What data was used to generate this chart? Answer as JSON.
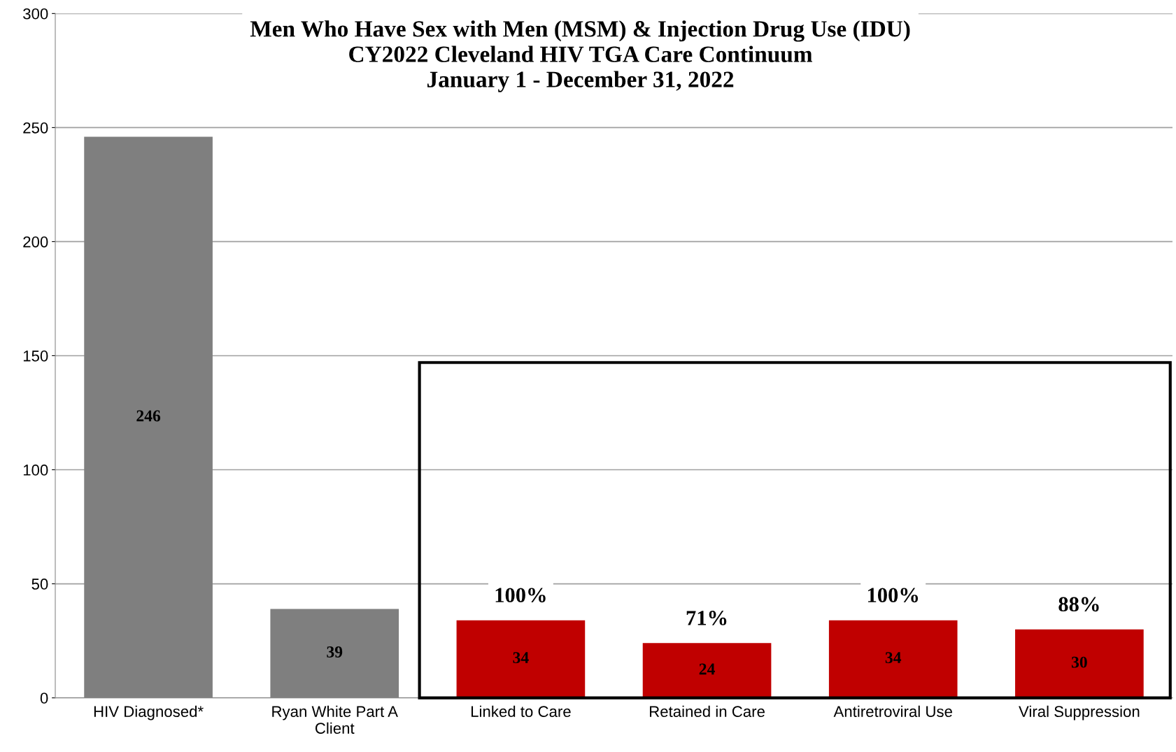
{
  "chart_data": {
    "type": "bar",
    "title": "Men Who Have Sex with Men (MSM) & Injection Drug Use (IDU)\nCY2022 Cleveland HIV TGA Care Continuum\nJanuary 1 - December 31, 2022",
    "categories": [
      "HIV Diagnosed*",
      "Ryan White Part A\nClient",
      "Linked to Care",
      "Retained in Care",
      "Antiretroviral Use",
      "Viral Suppression"
    ],
    "values": [
      246,
      39,
      34,
      24,
      34,
      30
    ],
    "colors": [
      "#7f7f7f",
      "#7f7f7f",
      "#c00000",
      "#c00000",
      "#c00000",
      "#c00000"
    ],
    "ylim": [
      0,
      300
    ],
    "yticks": [
      0,
      50,
      100,
      150,
      200,
      250,
      300
    ],
    "grid": "y",
    "data_labels": true,
    "annotations": [
      {
        "text": "100%",
        "x": "Linked to Care",
        "y": 34
      },
      {
        "text": "71%",
        "x": "Retained in Care",
        "y": 24
      },
      {
        "text": "100%",
        "x": "Antiretroviral Use",
        "y": 34
      },
      {
        "text": "88%",
        "x": "Viral Suppression",
        "y": 30
      }
    ]
  }
}
